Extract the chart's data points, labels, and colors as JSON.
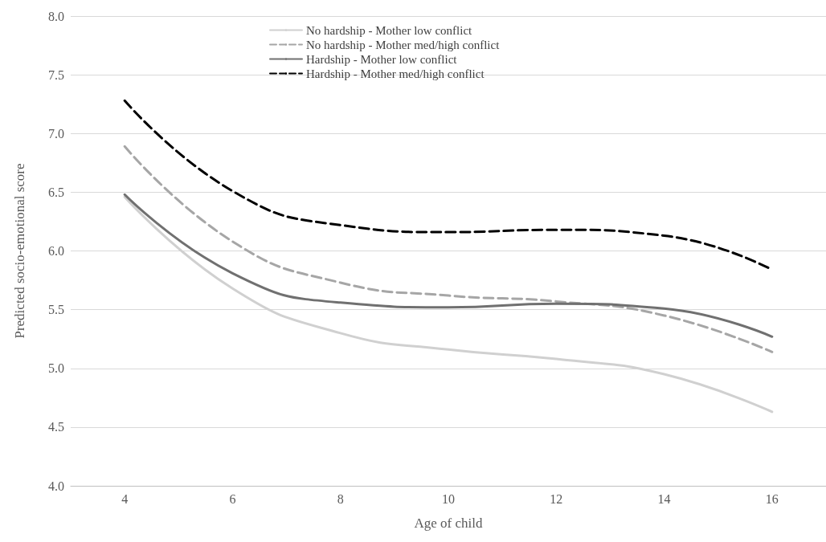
{
  "chart_data": {
    "type": "line",
    "xlabel": "Age of child",
    "ylabel": "Predicted socio-emotional score",
    "x": [
      4,
      6,
      8,
      10,
      12,
      14,
      16
    ],
    "series": [
      {
        "name": "No hardship - Mother low conflict",
        "color": "#d0d0d0",
        "line_style": "solid",
        "values": [
          6.46,
          5.68,
          5.3,
          5.16,
          5.08,
          4.95,
          4.63
        ]
      },
      {
        "name": "No hardship - Mother med/high conflict",
        "color": "#a6a6a6",
        "line_style": "dashed",
        "values": [
          6.89,
          6.08,
          5.73,
          5.62,
          5.57,
          5.45,
          5.14
        ]
      },
      {
        "name": "Hardship - Mother low conflict",
        "color": "#707070",
        "line_style": "solid",
        "values": [
          6.48,
          5.81,
          5.56,
          5.52,
          5.55,
          5.51,
          5.27
        ]
      },
      {
        "name": "Hardship - Mother med/high conflict",
        "color": "#000000",
        "line_style": "dashed",
        "values": [
          7.28,
          6.51,
          6.22,
          6.16,
          6.18,
          6.13,
          5.84
        ]
      }
    ],
    "xlim": [
      3,
      17
    ],
    "xticks": [
      4,
      6,
      8,
      10,
      12,
      14,
      16
    ],
    "ylim": [
      4,
      8
    ],
    "yticks": [
      {
        "value": 4,
        "label": "4.0"
      },
      {
        "value": 4.5,
        "label": "4.5"
      },
      {
        "value": 5,
        "label": "5.0"
      },
      {
        "value": 5.5,
        "label": "5.5"
      },
      {
        "value": 6,
        "label": "6.0"
      },
      {
        "value": 6.5,
        "label": "6.5"
      },
      {
        "value": 7,
        "label": "7.0"
      },
      {
        "value": 7.5,
        "label": "7.5"
      },
      {
        "value": 8,
        "label": "8.0"
      }
    ],
    "grid": "y",
    "legend": "top",
    "marker": "none"
  }
}
